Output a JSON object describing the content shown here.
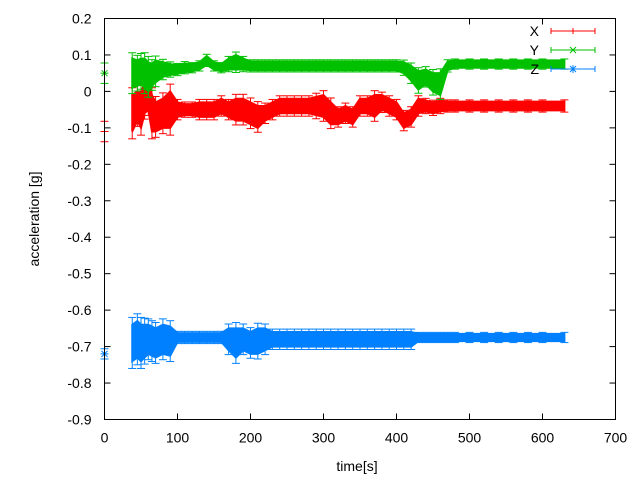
{
  "chart_data": {
    "type": "line",
    "title": "",
    "xlabel": "time[s]",
    "ylabel": "acceleration [g]",
    "xlim": [
      0,
      700
    ],
    "ylim": [
      -0.9,
      0.2
    ],
    "xticks": [
      0,
      100,
      200,
      300,
      400,
      500,
      600,
      700
    ],
    "yticks": [
      0.2,
      0.1,
      0,
      -0.1,
      -0.2,
      -0.3,
      -0.4,
      -0.5,
      -0.6,
      -0.7,
      -0.8,
      -0.9
    ],
    "ytick_labels": [
      "0.2",
      "0.1",
      "0",
      "-0.1",
      "-0.2",
      "-0.3",
      "-0.4",
      "-0.5",
      "-0.6",
      "-0.7",
      "-0.8",
      "-0.9"
    ],
    "grid": false,
    "legend_position": "top-right",
    "error_bars": true,
    "x": [
      0,
      38,
      45,
      50,
      55,
      60,
      65,
      70,
      80,
      90,
      100,
      110,
      120,
      130,
      140,
      150,
      160,
      170,
      180,
      190,
      200,
      210,
      220,
      230,
      240,
      250,
      260,
      270,
      280,
      290,
      300,
      310,
      320,
      330,
      340,
      350,
      360,
      370,
      380,
      390,
      400,
      410,
      420,
      430,
      440,
      450,
      460,
      470,
      480,
      500,
      520,
      540,
      560,
      580,
      600,
      630
    ],
    "series": [
      {
        "name": "X",
        "color": "#ff0000",
        "marker": "plus",
        "values": [
          -0.11,
          -0.06,
          -0.04,
          -0.05,
          -0.02,
          -0.01,
          -0.06,
          -0.07,
          -0.06,
          -0.05,
          -0.05,
          -0.05,
          -0.05,
          -0.05,
          -0.05,
          -0.05,
          -0.04,
          -0.05,
          -0.05,
          -0.05,
          -0.06,
          -0.07,
          -0.06,
          -0.05,
          -0.04,
          -0.04,
          -0.04,
          -0.04,
          -0.04,
          -0.04,
          -0.04,
          -0.06,
          -0.07,
          -0.06,
          -0.07,
          -0.04,
          -0.04,
          -0.04,
          -0.03,
          -0.04,
          -0.05,
          -0.08,
          -0.07,
          -0.04,
          -0.04,
          -0.045,
          -0.04,
          -0.04,
          -0.04,
          -0.04,
          -0.04,
          -0.04,
          -0.04,
          -0.04,
          -0.04,
          -0.04
        ],
        "errors": [
          0.02,
          0.05,
          0.04,
          0.05,
          0.04,
          0.04,
          0.05,
          0.04,
          0.04,
          0.05,
          0.02,
          0.015,
          0.015,
          0.02,
          0.02,
          0.02,
          0.02,
          0.02,
          0.03,
          0.03,
          0.03,
          0.03,
          0.02,
          0.02,
          0.02,
          0.02,
          0.02,
          0.02,
          0.02,
          0.025,
          0.03,
          0.03,
          0.02,
          0.02,
          0.02,
          0.02,
          0.02,
          0.03,
          0.02,
          0.02,
          0.02,
          0.02,
          0.02,
          0.02,
          0.015,
          0.015,
          0.015,
          0.012,
          0.012,
          0.012,
          0.012,
          0.012,
          0.012,
          0.012,
          0.012,
          0.012
        ]
      },
      {
        "name": "Y",
        "color": "#00c000",
        "marker": "cross",
        "values": [
          0.05,
          0.05,
          0.05,
          0.055,
          0.05,
          0.04,
          0.045,
          0.055,
          0.06,
          0.06,
          0.06,
          0.065,
          0.065,
          0.07,
          0.085,
          0.07,
          0.065,
          0.075,
          0.08,
          0.075,
          0.07,
          0.07,
          0.07,
          0.07,
          0.07,
          0.07,
          0.07,
          0.07,
          0.07,
          0.07,
          0.07,
          0.07,
          0.07,
          0.07,
          0.07,
          0.07,
          0.07,
          0.07,
          0.07,
          0.07,
          0.07,
          0.065,
          0.05,
          0.03,
          0.04,
          0.025,
          0.02,
          0.07,
          0.075,
          0.075,
          0.075,
          0.075,
          0.075,
          0.075,
          0.075,
          0.075
        ],
        "errors": [
          0.02,
          0.04,
          0.035,
          0.035,
          0.04,
          0.04,
          0.03,
          0.03,
          0.02,
          0.015,
          0.012,
          0.012,
          0.01,
          0.01,
          0.012,
          0.01,
          0.01,
          0.015,
          0.02,
          0.015,
          0.012,
          0.012,
          0.012,
          0.012,
          0.012,
          0.012,
          0.012,
          0.012,
          0.012,
          0.012,
          0.012,
          0.012,
          0.012,
          0.012,
          0.012,
          0.012,
          0.012,
          0.012,
          0.012,
          0.012,
          0.012,
          0.015,
          0.02,
          0.025,
          0.02,
          0.025,
          0.03,
          0.012,
          0.01,
          0.01,
          0.01,
          0.01,
          0.01,
          0.01,
          0.01,
          0.01
        ]
      },
      {
        "name": "Z",
        "color": "#0080ff",
        "marker": "star",
        "values": [
          -0.72,
          -0.69,
          -0.68,
          -0.69,
          -0.685,
          -0.68,
          -0.685,
          -0.69,
          -0.68,
          -0.685,
          -0.675,
          -0.675,
          -0.675,
          -0.675,
          -0.675,
          -0.675,
          -0.675,
          -0.68,
          -0.69,
          -0.68,
          -0.69,
          -0.685,
          -0.68,
          -0.68,
          -0.68,
          -0.68,
          -0.68,
          -0.68,
          -0.68,
          -0.68,
          -0.68,
          -0.68,
          -0.68,
          -0.68,
          -0.68,
          -0.68,
          -0.68,
          -0.68,
          -0.68,
          -0.68,
          -0.68,
          -0.68,
          -0.68,
          -0.675,
          -0.675,
          -0.675,
          -0.675,
          -0.675,
          -0.675,
          -0.675,
          -0.675,
          -0.675,
          -0.675,
          -0.675,
          -0.675,
          -0.675
        ],
        "errors": [
          0.01,
          0.05,
          0.05,
          0.05,
          0.045,
          0.04,
          0.04,
          0.04,
          0.04,
          0.04,
          0.012,
          0.012,
          0.012,
          0.012,
          0.012,
          0.012,
          0.012,
          0.03,
          0.04,
          0.03,
          0.03,
          0.035,
          0.03,
          0.02,
          0.02,
          0.02,
          0.02,
          0.02,
          0.02,
          0.02,
          0.02,
          0.02,
          0.02,
          0.02,
          0.02,
          0.02,
          0.02,
          0.02,
          0.02,
          0.02,
          0.02,
          0.02,
          0.02,
          0.01,
          0.01,
          0.01,
          0.01,
          0.01,
          0.01,
          0.01,
          0.01,
          0.01,
          0.01,
          0.01,
          0.01,
          0.01
        ]
      }
    ]
  }
}
